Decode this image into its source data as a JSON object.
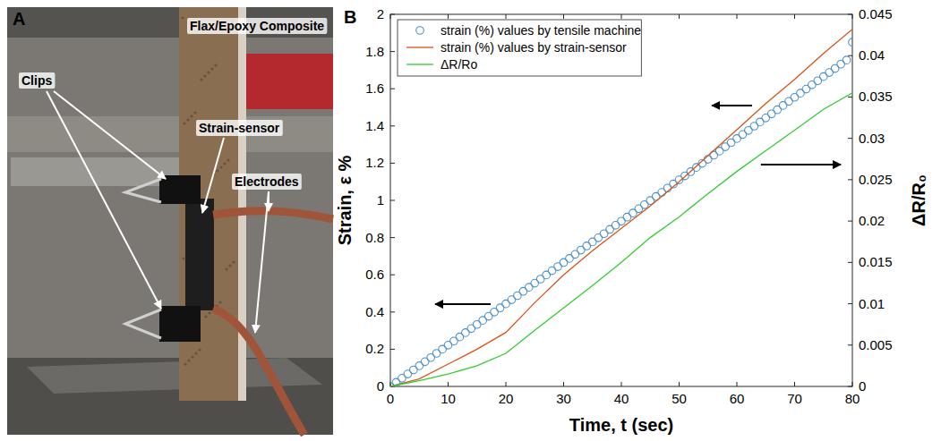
{
  "panel_a": {
    "letter": "A",
    "labels": [
      "Flax/Epoxy Composite",
      "Clips",
      "Strain-sensor",
      "Electrodes"
    ]
  },
  "panel_b": {
    "letter": "B"
  },
  "chart_data": {
    "type": "line",
    "xlabel": "Time, t (sec)",
    "ylabel": "Strain, ε %",
    "y2label": "ΔR/R₀",
    "xlim": [
      0,
      80
    ],
    "xticks": [
      0,
      10,
      20,
      30,
      40,
      50,
      60,
      70,
      80
    ],
    "ylim": [
      0,
      2
    ],
    "yticks": [
      0,
      0.2,
      0.4,
      0.6,
      0.8,
      1,
      1.2,
      1.4,
      1.6,
      1.8,
      2
    ],
    "y2lim": [
      0,
      0.045
    ],
    "y2ticks": [
      0,
      0.005,
      0.01,
      0.015,
      0.02,
      0.025,
      0.03,
      0.035,
      0.04,
      0.045
    ],
    "grid": false,
    "legend": "upper left",
    "series": [
      {
        "name": "strain (%) values by tensile machine",
        "color": "#4a90c8",
        "type": "scatter",
        "marker": "circle",
        "line_style": "none",
        "x": [
          0,
          1,
          2,
          3,
          4,
          5,
          6,
          7,
          8,
          9,
          10,
          11,
          12,
          13,
          14,
          15,
          16,
          17,
          18,
          19,
          20,
          21,
          22,
          23,
          24,
          25,
          26,
          27,
          28,
          29,
          30,
          31,
          32,
          33,
          34,
          35,
          36,
          37,
          38,
          39,
          40,
          41,
          42,
          43,
          44,
          45,
          46,
          47,
          48,
          49,
          50,
          51,
          52,
          53,
          54,
          55,
          56,
          57,
          58,
          59,
          60,
          61,
          62,
          63,
          64,
          65,
          66,
          67,
          68,
          69,
          70,
          71,
          72,
          73,
          74,
          75,
          76,
          77,
          78,
          79,
          80
        ],
        "values": [
          0,
          0.022,
          0.044,
          0.067,
          0.089,
          0.111,
          0.133,
          0.155,
          0.178,
          0.2,
          0.222,
          0.244,
          0.266,
          0.289,
          0.311,
          0.333,
          0.355,
          0.377,
          0.4,
          0.422,
          0.444,
          0.466,
          0.488,
          0.511,
          0.533,
          0.555,
          0.577,
          0.599,
          0.622,
          0.644,
          0.666,
          0.688,
          0.71,
          0.733,
          0.755,
          0.777,
          0.799,
          0.821,
          0.844,
          0.866,
          0.888,
          0.91,
          0.932,
          0.955,
          0.977,
          0.999,
          1.021,
          1.043,
          1.066,
          1.088,
          1.11,
          1.132,
          1.154,
          1.177,
          1.199,
          1.221,
          1.243,
          1.265,
          1.288,
          1.31,
          1.332,
          1.354,
          1.376,
          1.399,
          1.421,
          1.443,
          1.465,
          1.487,
          1.51,
          1.532,
          1.554,
          1.576,
          1.598,
          1.621,
          1.643,
          1.665,
          1.687,
          1.709,
          1.732,
          1.754,
          1.85
        ]
      },
      {
        "name": "strain (%) values by strain-sensor",
        "color": "#d95319",
        "type": "line",
        "marker": "none",
        "line_style": "solid",
        "x": [
          0,
          5,
          10,
          15,
          20,
          25,
          30,
          35,
          40,
          45,
          50,
          55,
          60,
          65,
          70,
          75,
          80
        ],
        "values": [
          0,
          0.04,
          0.12,
          0.2,
          0.29,
          0.45,
          0.6,
          0.73,
          0.85,
          0.97,
          1.1,
          1.24,
          1.38,
          1.52,
          1.65,
          1.79,
          1.92
        ]
      },
      {
        "name": "ΔR/Ro",
        "color": "#33cc33",
        "type": "line",
        "marker": "none",
        "line_style": "solid",
        "axis": "y2",
        "x": [
          0,
          5,
          10,
          15,
          20,
          25,
          30,
          35,
          40,
          45,
          50,
          55,
          60,
          65,
          70,
          75,
          80
        ],
        "values": [
          0,
          0.0007,
          0.0015,
          0.0025,
          0.004,
          0.0068,
          0.0095,
          0.0122,
          0.015,
          0.018,
          0.0205,
          0.0233,
          0.026,
          0.0285,
          0.031,
          0.0335,
          0.0355
        ]
      }
    ]
  }
}
